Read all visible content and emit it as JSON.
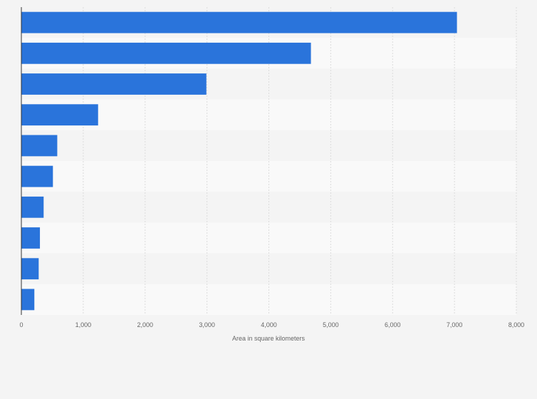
{
  "chart_data": {
    "type": "bar",
    "orientation": "horizontal",
    "categories": [
      "",
      "",
      "",
      "",
      "",
      "",
      "",
      "",
      "",
      ""
    ],
    "values": [
      7040,
      4680,
      2990,
      1240,
      580,
      510,
      360,
      300,
      280,
      210
    ],
    "xlabel": "Area in square kilometers",
    "ylabel": "",
    "xlim": [
      0,
      8000
    ],
    "xticks": [
      "0",
      "1,000",
      "2,000",
      "3,000",
      "4,000",
      "5,000",
      "6,000",
      "7,000",
      "8,000"
    ],
    "grid": true,
    "legend": "none"
  },
  "colors": {
    "bar": "#2a74db",
    "background": "#f4f4f4",
    "band_alt": "#f9f9f9",
    "grid": "#dcdcdc",
    "axis": "#333333",
    "text": "#666666"
  }
}
